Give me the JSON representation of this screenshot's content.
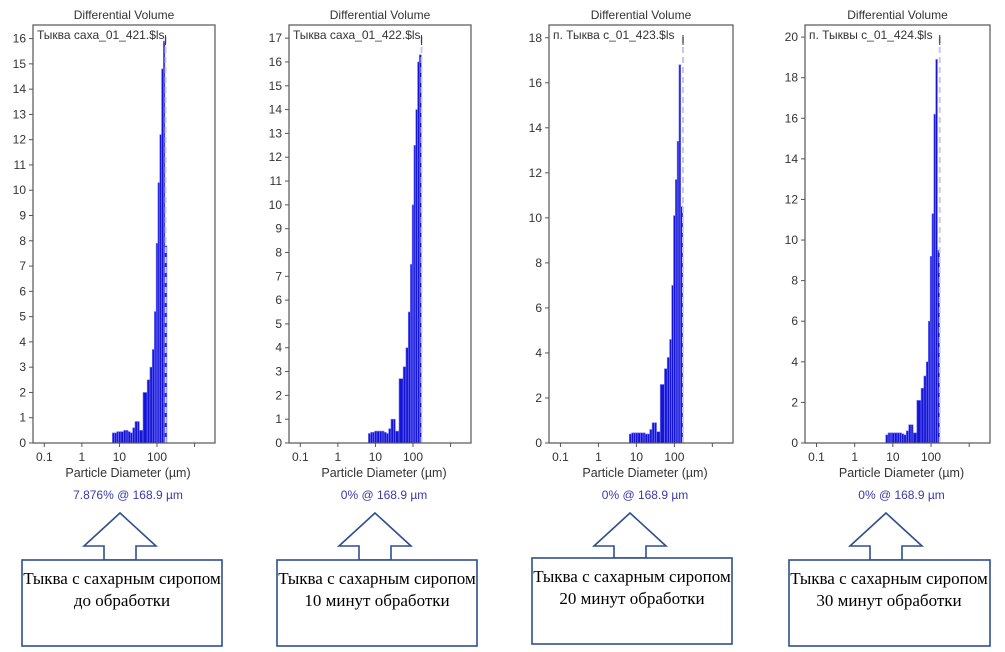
{
  "chart_data": [
    {
      "type": "bar",
      "title": "Differential Volume",
      "legend": "Тыква саха_01_421.$ls",
      "xlabel": "Particle Diameter (µm)",
      "ylabel": "",
      "xscale": "log",
      "xticks": [
        "0.1",
        "1",
        "10",
        "100"
      ],
      "xlim": [
        0.05,
        3500
      ],
      "ylim": [
        0,
        16.3
      ],
      "yticks": [
        0,
        1,
        2,
        3,
        4,
        5,
        6,
        7,
        8,
        9,
        10,
        11,
        12,
        13,
        14,
        15,
        16
      ],
      "readout": "7.876% @ 168.9 µm",
      "marker_x": 168.9,
      "x": [
        7,
        8,
        9,
        10,
        12,
        14,
        16,
        18,
        21,
        24,
        28,
        32,
        36,
        50,
        60,
        70,
        80,
        90,
        100,
        112,
        125,
        140,
        155,
        170
      ],
      "values": [
        0.4,
        0.4,
        0.45,
        0.45,
        0.45,
        0.5,
        0.5,
        0.45,
        0.4,
        0.6,
        0.85,
        0.85,
        0.5,
        2.0,
        2.5,
        3.0,
        3.7,
        5.2,
        7.9,
        10.3,
        12.2,
        14.8,
        15.9,
        7.8
      ],
      "caption": "Тыква с сахарным сиропом до обработки"
    },
    {
      "type": "bar",
      "title": "Differential Volume",
      "legend": "Тыква саха_01_422.$ls",
      "xlabel": "Particle Diameter (µm)",
      "ylabel": "",
      "xscale": "log",
      "xticks": [
        "0.1",
        "1",
        "10",
        "100"
      ],
      "xlim": [
        0.05,
        3500
      ],
      "ylim": [
        0,
        17.3
      ],
      "yticks": [
        0,
        1,
        2,
        3,
        4,
        5,
        6,
        7,
        8,
        9,
        10,
        11,
        12,
        13,
        14,
        15,
        16,
        17
      ],
      "readout": "0% @ 168.9 µm",
      "marker_x": 168.9,
      "x": [
        7,
        8,
        9,
        10,
        12,
        14,
        16,
        18,
        21,
        24,
        28,
        32,
        36,
        50,
        60,
        70,
        80,
        90,
        100,
        112,
        125,
        140,
        155
      ],
      "values": [
        0.4,
        0.45,
        0.45,
        0.5,
        0.5,
        0.5,
        0.5,
        0.45,
        0.4,
        0.6,
        1.0,
        1.0,
        0.5,
        2.7,
        3.2,
        4.0,
        5.5,
        7.5,
        10.0,
        12.5,
        14.0,
        16.0,
        16.3
      ],
      "caption": "Тыква с сахарным сиропом 10 минут обработки"
    },
    {
      "type": "bar",
      "title": "Differential Volume",
      "legend": "п. Тыква с_01_423.$ls",
      "xlabel": "Particle Diameter (µm)",
      "ylabel": "",
      "xscale": "log",
      "xticks": [
        "0.1",
        "1",
        "10",
        "100"
      ],
      "xlim": [
        0.05,
        3500
      ],
      "ylim": [
        0,
        18.3
      ],
      "yticks": [
        0,
        2,
        4,
        6,
        8,
        10,
        12,
        14,
        16,
        18
      ],
      "readout": "0% @ 168.9 µm",
      "marker_x": 168.9,
      "x": [
        7,
        8,
        9,
        10,
        12,
        14,
        16,
        18,
        21,
        24,
        28,
        32,
        36,
        50,
        60,
        70,
        80,
        90,
        100,
        112,
        125,
        140,
        155
      ],
      "values": [
        0.4,
        0.45,
        0.45,
        0.45,
        0.45,
        0.45,
        0.45,
        0.4,
        0.4,
        0.6,
        0.9,
        0.9,
        0.5,
        2.6,
        3.3,
        3.8,
        4.6,
        7.0,
        10.1,
        11.7,
        13.4,
        16.8,
        10.5
      ],
      "caption": "Тыква с сахарным сиропом 20 минут обработки"
    },
    {
      "type": "bar",
      "title": "Differential Volume",
      "legend": "п. Тыквы с_01_424.$ls",
      "xlabel": "Particle Diameter (µm)",
      "ylabel": "",
      "xscale": "log",
      "xticks": [
        "0.1",
        "1",
        "10",
        "100"
      ],
      "xlim": [
        0.05,
        3500
      ],
      "ylim": [
        0,
        20.3
      ],
      "yticks": [
        0,
        2,
        4,
        6,
        8,
        10,
        12,
        14,
        16,
        18,
        20
      ],
      "readout": "0% @ 168.9 µm",
      "marker_x": 168.9,
      "x": [
        7,
        8,
        9,
        10,
        12,
        14,
        16,
        18,
        21,
        24,
        28,
        32,
        36,
        50,
        60,
        70,
        80,
        90,
        100,
        112,
        125,
        140,
        155
      ],
      "values": [
        0.4,
        0.5,
        0.5,
        0.5,
        0.5,
        0.5,
        0.5,
        0.45,
        0.4,
        0.6,
        0.9,
        0.9,
        0.5,
        2.1,
        2.7,
        3.3,
        4.0,
        6.0,
        9.2,
        11.3,
        16.2,
        18.9,
        9.5
      ],
      "caption": "Тыква с сахарным сиропом 30 минут обработки"
    }
  ],
  "colors": {
    "bar": "#1414d2",
    "bar_edge": "#7a7aff",
    "readout": "#3a3aa8",
    "caption_border": "#2f4f8f"
  }
}
